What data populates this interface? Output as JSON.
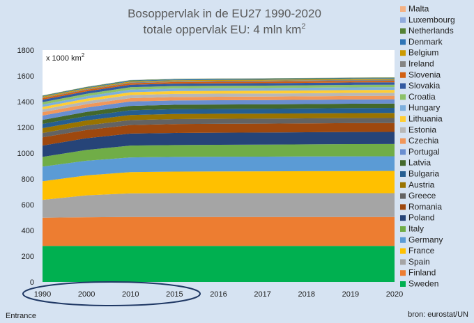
{
  "chart_data": {
    "type": "area",
    "stacked": true,
    "title_line1": "Bosoppervlak in de EU27 1990-2020",
    "title_line2": "totale oppervlak EU: 4 mln km",
    "title_sup": "2",
    "unit_label": "x 1000 km",
    "unit_sup": "2",
    "x": [
      "1990",
      "2000",
      "2010",
      "2015",
      "2016",
      "2017",
      "2018",
      "2019",
      "2020"
    ],
    "ylim": [
      0,
      1800
    ],
    "yticks": [
      0,
      200,
      400,
      600,
      800,
      1000,
      1200,
      1400,
      1600,
      1800
    ],
    "grid": false,
    "legend_position": "right",
    "series": [
      {
        "name": "Sweden",
        "color": "#00b050",
        "values": [
          280,
          280,
          280,
          280,
          280,
          280,
          280,
          280,
          280
        ]
      },
      {
        "name": "Finland",
        "color": "#ed7d31",
        "values": [
          219,
          222,
          224,
          224,
          224,
          224,
          224,
          224,
          224
        ]
      },
      {
        "name": "Spain",
        "color": "#a5a5a5",
        "values": [
          138,
          170,
          184,
          185,
          185,
          185,
          185,
          185,
          185
        ]
      },
      {
        "name": "France",
        "color": "#ffc000",
        "values": [
          145,
          155,
          165,
          168,
          169,
          170,
          171,
          172,
          173
        ]
      },
      {
        "name": "Germany",
        "color": "#5b9bd5",
        "values": [
          113,
          114,
          114,
          114,
          114,
          114,
          114,
          114,
          114
        ]
      },
      {
        "name": "Italy",
        "color": "#70ad47",
        "values": [
          76,
          84,
          92,
          92,
          93,
          93,
          94,
          95,
          95
        ]
      },
      {
        "name": "Poland",
        "color": "#264478",
        "values": [
          88,
          91,
          93,
          94,
          94,
          94,
          94,
          94,
          94
        ]
      },
      {
        "name": "Romania",
        "color": "#9e480e",
        "values": [
          64,
          64,
          66,
          69,
          69,
          69,
          69,
          69,
          69
        ]
      },
      {
        "name": "Greece",
        "color": "#636363",
        "values": [
          33,
          36,
          39,
          39,
          39,
          39,
          39,
          39,
          39
        ]
      },
      {
        "name": "Austria",
        "color": "#997300",
        "values": [
          38,
          38,
          39,
          39,
          39,
          39,
          39,
          39,
          39
        ]
      },
      {
        "name": "Bulgaria",
        "color": "#255e91",
        "values": [
          33,
          34,
          37,
          38,
          38,
          38,
          38,
          39,
          39
        ]
      },
      {
        "name": "Latvia",
        "color": "#43682b",
        "values": [
          31,
          32,
          34,
          34,
          34,
          34,
          34,
          34,
          34
        ]
      },
      {
        "name": "Portugal",
        "color": "#698ed0",
        "values": [
          34,
          34,
          34,
          33,
          33,
          33,
          33,
          33,
          33
        ]
      },
      {
        "name": "Czechia",
        "color": "#f1975a",
        "values": [
          26,
          26,
          26,
          27,
          27,
          27,
          27,
          27,
          27
        ]
      },
      {
        "name": "Estonia",
        "color": "#b7b7b7",
        "values": [
          22,
          23,
          24,
          24,
          24,
          24,
          24,
          24,
          24
        ]
      },
      {
        "name": "Lithuania",
        "color": "#ffcd33",
        "values": [
          19,
          20,
          22,
          22,
          22,
          22,
          22,
          22,
          22
        ]
      },
      {
        "name": "Hungary",
        "color": "#7cafdd",
        "values": [
          18,
          19,
          20,
          20,
          20,
          20,
          21,
          21,
          21
        ]
      },
      {
        "name": "Croatia",
        "color": "#8cc168",
        "values": [
          19,
          19,
          19,
          19,
          19,
          19,
          19,
          19,
          19
        ]
      },
      {
        "name": "Slovakia",
        "color": "#335aa1",
        "values": [
          19,
          19,
          19,
          19,
          19,
          19,
          19,
          19,
          19
        ]
      },
      {
        "name": "Slovenia",
        "color": "#d26012",
        "values": [
          12,
          12,
          12,
          12,
          12,
          12,
          12,
          12,
          12
        ]
      },
      {
        "name": "Ireland",
        "color": "#848484",
        "values": [
          5,
          6,
          7,
          7,
          8,
          8,
          8,
          8,
          8
        ]
      },
      {
        "name": "Belgium",
        "color": "#cc9a00",
        "values": [
          7,
          7,
          7,
          7,
          7,
          7,
          7,
          7,
          7
        ]
      },
      {
        "name": "Denmark",
        "color": "#2e75b6",
        "values": [
          4,
          5,
          6,
          6,
          6,
          6,
          6,
          6,
          6
        ]
      },
      {
        "name": "Netherlands",
        "color": "#548235",
        "values": [
          4,
          4,
          4,
          4,
          4,
          4,
          4,
          4,
          4
        ]
      },
      {
        "name": "Luxembourg",
        "color": "#8faadc",
        "values": [
          1,
          1,
          1,
          1,
          1,
          1,
          1,
          1,
          1
        ]
      },
      {
        "name": "Malta",
        "color": "#f4b183",
        "values": [
          0.5,
          0.5,
          0.5,
          0.5,
          0.5,
          0.5,
          0.5,
          0.5,
          0.5
        ]
      }
    ]
  },
  "footer": {
    "left": "Entrance",
    "right": "bron: eurostat/UN"
  }
}
